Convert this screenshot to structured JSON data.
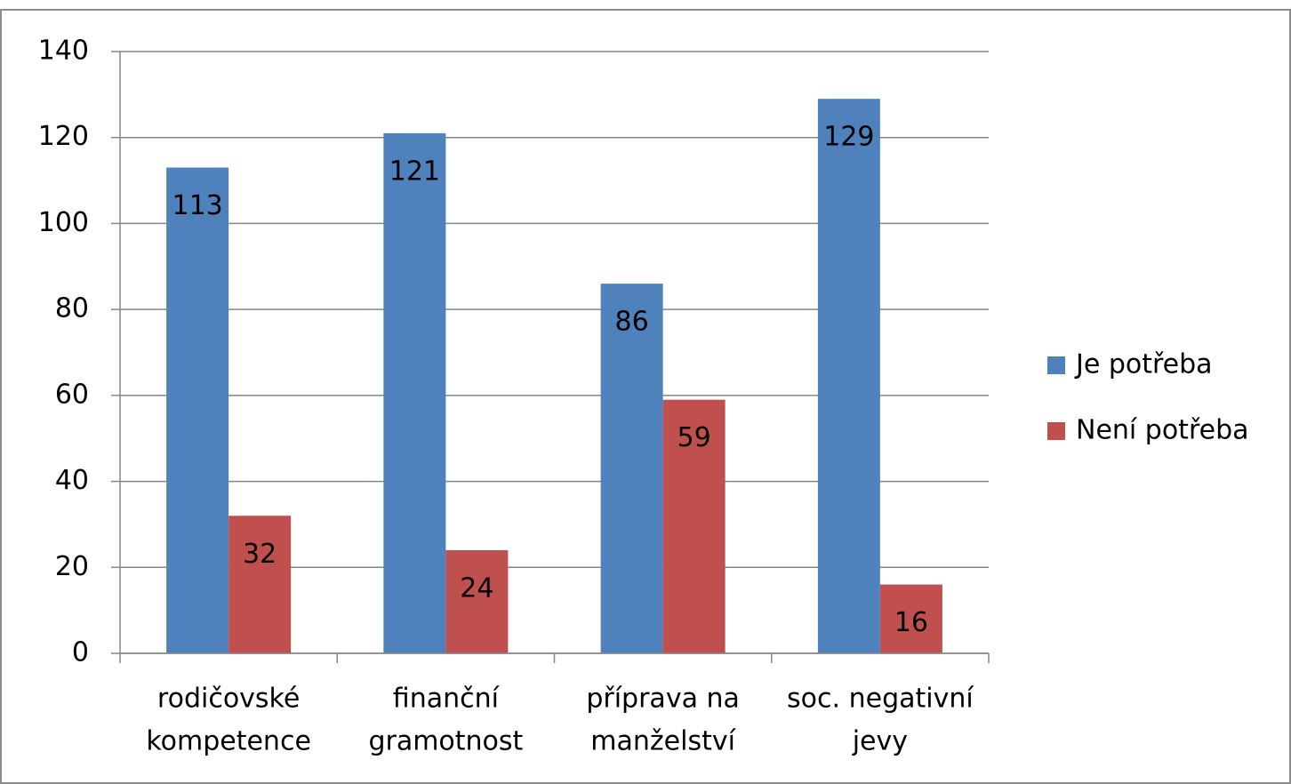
{
  "chart_data": {
    "type": "bar",
    "categories": [
      [
        "rodičovské",
        "kompetence"
      ],
      [
        "finanční",
        "gramotnost"
      ],
      [
        "příprava na",
        "manželství"
      ],
      [
        "soc. negativní",
        "jevy"
      ]
    ],
    "series": [
      {
        "name": "Je potřeba",
        "color": "#4f81bd",
        "values": [
          113,
          121,
          86,
          129
        ]
      },
      {
        "name": "Není potřeba",
        "color": "#c0504d",
        "values": [
          32,
          24,
          59,
          16
        ]
      }
    ],
    "ylim": [
      0,
      140
    ],
    "yticks": [
      0,
      20,
      40,
      60,
      80,
      100,
      120,
      140
    ],
    "grid": true,
    "legend": "right"
  }
}
